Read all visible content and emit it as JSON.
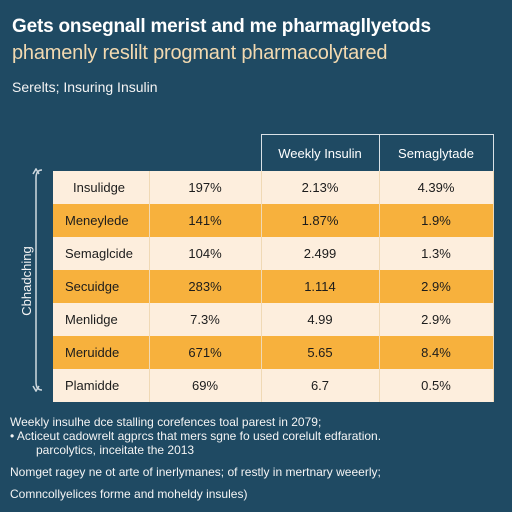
{
  "title": {
    "line1": "Gets onsegnall merist and me pharmagllyetods",
    "line2": "phamenly reslilt progmant pharmacolytared"
  },
  "subtitle": "Serelts; Insuring Insulin",
  "side_label": "Cbhadching",
  "table": {
    "headers": [
      "",
      "",
      "Weekly Insulin",
      "Semaglytade"
    ],
    "rows": [
      {
        "name": "Insulidge",
        "c2": "197%",
        "c3": "2.13%",
        "c4": "4.39%",
        "shade": "light"
      },
      {
        "name": "Meneylede",
        "c2": "141%",
        "c3": "1.87%",
        "c4": "1.9%",
        "shade": "dark"
      },
      {
        "name": "Semaglcide",
        "c2": "104%",
        "c3": "2.499",
        "c4": "1.3%",
        "shade": "light"
      },
      {
        "name": "Secuidge",
        "c2": "283%",
        "c3": "1.114",
        "c4": "2.9%",
        "shade": "dark"
      },
      {
        "name": "Menlidge",
        "c2": "7.3%",
        "c3": "4.99",
        "c4": "2.9%",
        "shade": "light"
      },
      {
        "name": "Meruidde",
        "c2": "671%",
        "c3": "5.65",
        "c4": "8.4%",
        "shade": "dark"
      },
      {
        "name": "Plamidde",
        "c2": "69%",
        "c3": "6.7",
        "c4": "0.5%",
        "shade": "light"
      }
    ]
  },
  "footer": {
    "line1": "Weekly insulhe dce stalling corefences toal parest in 2079;",
    "line2": "• Acticeut cadowrelt agprcs that mers sgne fo used corelult edfaration.",
    "line3": "parcolytics, inceitate the 2013",
    "line4": "Nomget ragey ne ot arte of inerlymanes; of restly in mertnary weeerly;",
    "line5": "Comncollyelices forme and moheldy insules)"
  },
  "colors": {
    "background": "#1f4a63",
    "row_light": "#fdeedd",
    "row_dark": "#f7b13d",
    "title_line2": "#f2d9b0"
  }
}
